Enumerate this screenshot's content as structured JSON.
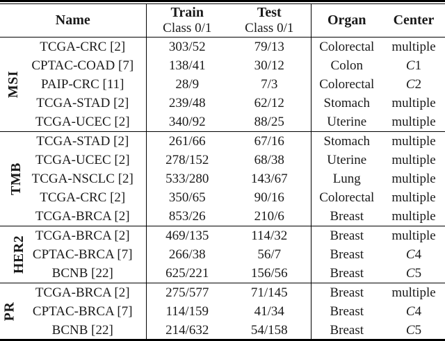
{
  "colors": {
    "text": "#1a1a1a",
    "rule": "#000000",
    "background": "#ffffff"
  },
  "table": {
    "header": {
      "name": "Name",
      "train": "Train",
      "test": "Test",
      "class_sub": "Class 0/1",
      "organ": "Organ",
      "center": "Center"
    },
    "groups": [
      {
        "label": "MSI",
        "rows": [
          {
            "name": "TCGA-CRC [2]",
            "train": "303/52",
            "test": "79/13",
            "organ": "Colorectal",
            "center": "multiple"
          },
          {
            "name": "CPTAC-COAD [7]",
            "train": "138/41",
            "test": "30/12",
            "organ": "Colon",
            "center": "C1"
          },
          {
            "name": "PAIP-CRC [11]",
            "train": "28/9",
            "test": "7/3",
            "organ": "Colorectal",
            "center": "C2"
          },
          {
            "name": "TCGA-STAD [2]",
            "train": "239/48",
            "test": "62/12",
            "organ": "Stomach",
            "center": "multiple"
          },
          {
            "name": "TCGA-UCEC [2]",
            "train": "340/92",
            "test": "88/25",
            "organ": "Uterine",
            "center": "multiple"
          }
        ]
      },
      {
        "label": "TMB",
        "rows": [
          {
            "name": "TCGA-STAD [2]",
            "train": "261/66",
            "test": "67/16",
            "organ": "Stomach",
            "center": "multiple"
          },
          {
            "name": "TCGA-UCEC [2]",
            "train": "278/152",
            "test": "68/38",
            "organ": "Uterine",
            "center": "multiple"
          },
          {
            "name": "TCGA-NSCLC [2]",
            "train": "533/280",
            "test": "143/67",
            "organ": "Lung",
            "center": "multiple"
          },
          {
            "name": "TCGA-CRC [2]",
            "train": "350/65",
            "test": "90/16",
            "organ": "Colorectal",
            "center": "multiple"
          },
          {
            "name": "TCGA-BRCA [2]",
            "train": "853/26",
            "test": "210/6",
            "organ": "Breast",
            "center": "multiple"
          }
        ]
      },
      {
        "label": "HER2",
        "rows": [
          {
            "name": "TCGA-BRCA [2]",
            "train": "469/135",
            "test": "114/32",
            "organ": "Breast",
            "center": "multiple"
          },
          {
            "name": "CPTAC-BRCA [7]",
            "train": "266/38",
            "test": "56/7",
            "organ": "Breast",
            "center": "C4"
          },
          {
            "name": "BCNB [22]",
            "train": "625/221",
            "test": "156/56",
            "organ": "Breast",
            "center": "C5"
          }
        ]
      },
      {
        "label": "PR",
        "rows": [
          {
            "name": "TCGA-BRCA [2]",
            "train": "275/577",
            "test": "71/145",
            "organ": "Breast",
            "center": "multiple"
          },
          {
            "name": "CPTAC-BRCA [7]",
            "train": "114/159",
            "test": "41/34",
            "organ": "Breast",
            "center": "C4"
          },
          {
            "name": "BCNB [22]",
            "train": "214/632",
            "test": "54/158",
            "organ": "Breast",
            "center": "C5"
          }
        ]
      }
    ]
  }
}
